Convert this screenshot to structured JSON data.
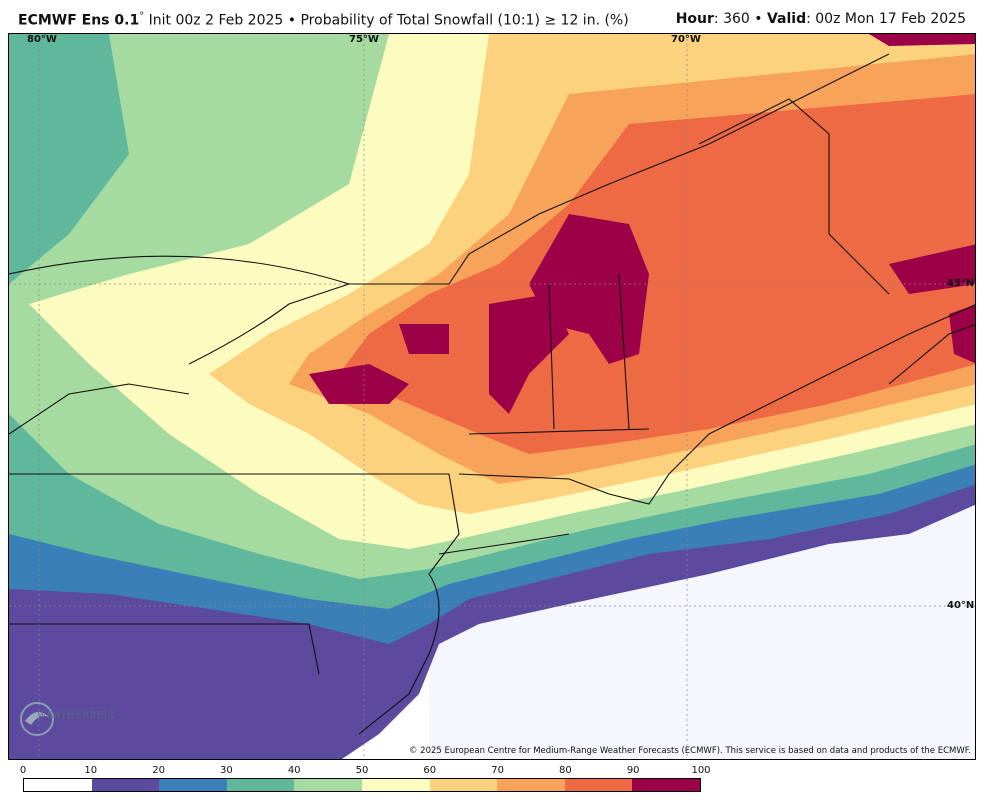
{
  "header": {
    "model": "ECMWF Ens 0.1",
    "degree": "°",
    "init": "Init 00z 2 Feb 2025",
    "bullet": "•",
    "product": "Probability of Total Snowfall (10:1) ≥ 12 in. (%)",
    "hour_label": "Hour",
    "hour_value": ": 360",
    "valid_label": "Valid",
    "valid_value": ": 00z Mon 17 Feb 2025"
  },
  "map": {
    "labels": {
      "lon80": "80°W",
      "lon75": "75°W",
      "lon70": "70°W",
      "lat45": "45°N",
      "lat40": "40°N"
    },
    "copyright": "© 2025 European Centre for Medium-Range Weather Forecasts (ECMWF). This service is based on data and products of the ECMWF.",
    "logo_text": "WEATHERBELL",
    "logo_icon": "weatherbell-swirl-icon"
  },
  "legend": {
    "ticks": [
      "0",
      "10",
      "20",
      "30",
      "40",
      "50",
      "60",
      "70",
      "80",
      "90",
      "100"
    ],
    "colors": [
      "#ffffff",
      "#5b4a9e",
      "#3a7fb8",
      "#5fb79c",
      "#a5dba0",
      "#fdfcc0",
      "#fdd27e",
      "#f8a35a",
      "#ee6a45",
      "#9c0046"
    ]
  }
}
